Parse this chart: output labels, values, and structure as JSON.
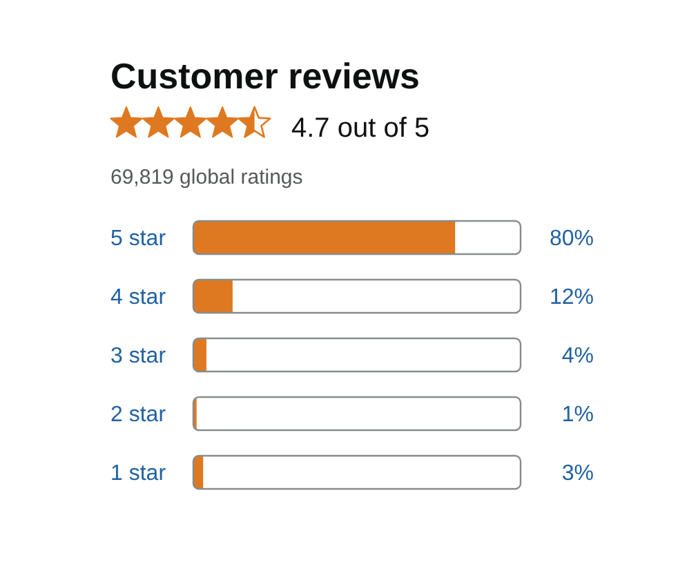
{
  "chart_data": {
    "type": "bar",
    "orientation": "horizontal",
    "title": "Customer reviews",
    "subtitle": "4.7 out of 5",
    "annotations": [
      "69,819 global ratings"
    ],
    "categories": [
      "5 star",
      "4 star",
      "3 star",
      "2 star",
      "1 star"
    ],
    "values": [
      80,
      12,
      4,
      1,
      3
    ],
    "value_labels": [
      "80%",
      "12%",
      "4%",
      "1%",
      "3%"
    ],
    "color": "#de7921",
    "xlim": [
      0,
      100
    ],
    "tick_labels": "y"
  }
}
